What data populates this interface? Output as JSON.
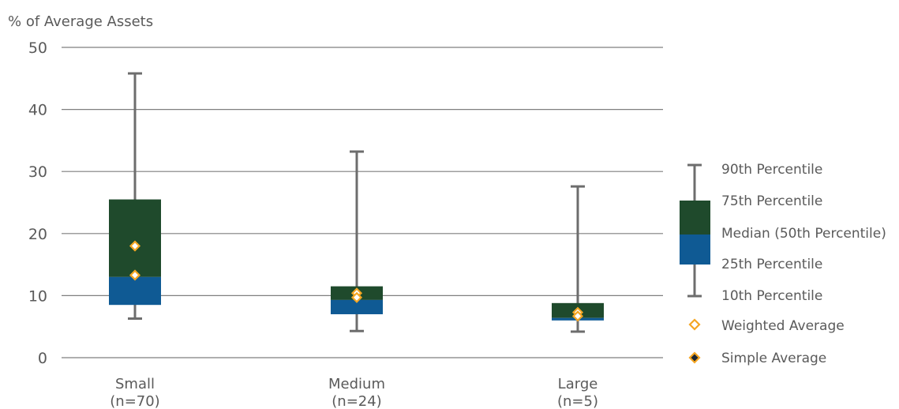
{
  "chart_data": {
    "type": "box",
    "ylabel": "% of Average Assets",
    "ylim": [
      0,
      50
    ],
    "yticks": [
      0,
      10,
      20,
      30,
      40,
      50
    ],
    "grid": true,
    "legend_position": "right",
    "categories": [
      {
        "name": "Small",
        "sub": "(n=70)"
      },
      {
        "name": "Medium",
        "sub": "(n=24)"
      },
      {
        "name": "Large",
        "sub": "(n=5)"
      }
    ],
    "boxes": [
      {
        "p10": 6.3,
        "p25": 8.5,
        "median": 13.0,
        "p75": 25.5,
        "p90": 45.8,
        "weighted_avg": 18.0,
        "simple_avg": 13.3
      },
      {
        "p10": 4.3,
        "p25": 7.0,
        "median": 9.3,
        "p75": 11.5,
        "p90": 33.2,
        "weighted_avg": 10.4,
        "simple_avg": 9.7
      },
      {
        "p10": 4.2,
        "p25": 6.0,
        "median": 6.4,
        "p75": 8.8,
        "p90": 27.6,
        "weighted_avg": 7.3,
        "simple_avg": 6.7
      }
    ],
    "legend": {
      "p90": "90th Percentile",
      "p75": "75th Percentile",
      "median": "Median (50th Percentile)",
      "p25": "25th Percentile",
      "p10": "10th Percentile",
      "weighted_avg": "Weighted Average",
      "simple_avg": "Simple Average"
    },
    "colors": {
      "upper_box": "#1f4a2c",
      "lower_box": "#0f5a94",
      "whisker": "#6d6d6d",
      "marker": "#f5a623",
      "simple_marker_fill": "#1c2733",
      "grid": "#7f7f7f"
    }
  }
}
